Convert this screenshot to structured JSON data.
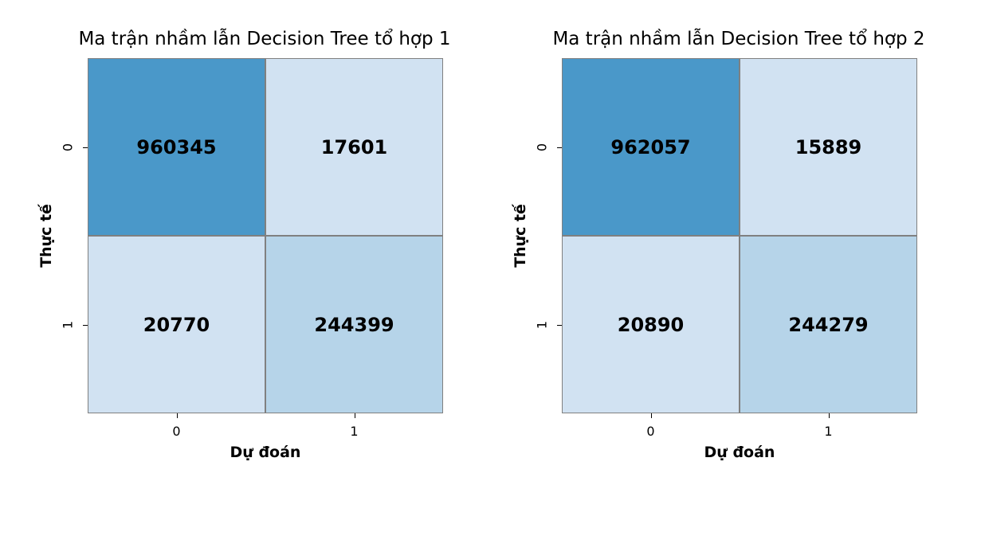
{
  "chart_data": [
    {
      "type": "heatmap",
      "title": "Ma trận nhầm lẫn Decision Tree tổ hợp 1",
      "xlabel": "Dự đoán",
      "ylabel": "Thực tế",
      "x_categories": [
        "0",
        "1"
      ],
      "y_categories": [
        "0",
        "1"
      ],
      "values": [
        [
          960345,
          17601
        ],
        [
          20770,
          244399
        ]
      ],
      "cell_colors": [
        [
          "#4a98c9",
          "#d1e2f2"
        ],
        [
          "#d1e2f2",
          "#b6d4e9"
        ]
      ],
      "colormap": "Blues",
      "colorbar": false
    },
    {
      "type": "heatmap",
      "title": "Ma trận nhầm lẫn Decision Tree tổ hợp 2",
      "xlabel": "Dự đoán",
      "ylabel": "Thực tế",
      "x_categories": [
        "0",
        "1"
      ],
      "y_categories": [
        "0",
        "1"
      ],
      "values": [
        [
          962057,
          15889
        ],
        [
          20890,
          244279
        ]
      ],
      "cell_colors": [
        [
          "#4a98c9",
          "#d1e2f2"
        ],
        [
          "#d1e2f2",
          "#b6d4e9"
        ]
      ],
      "colormap": "Blues",
      "colorbar": false
    }
  ]
}
